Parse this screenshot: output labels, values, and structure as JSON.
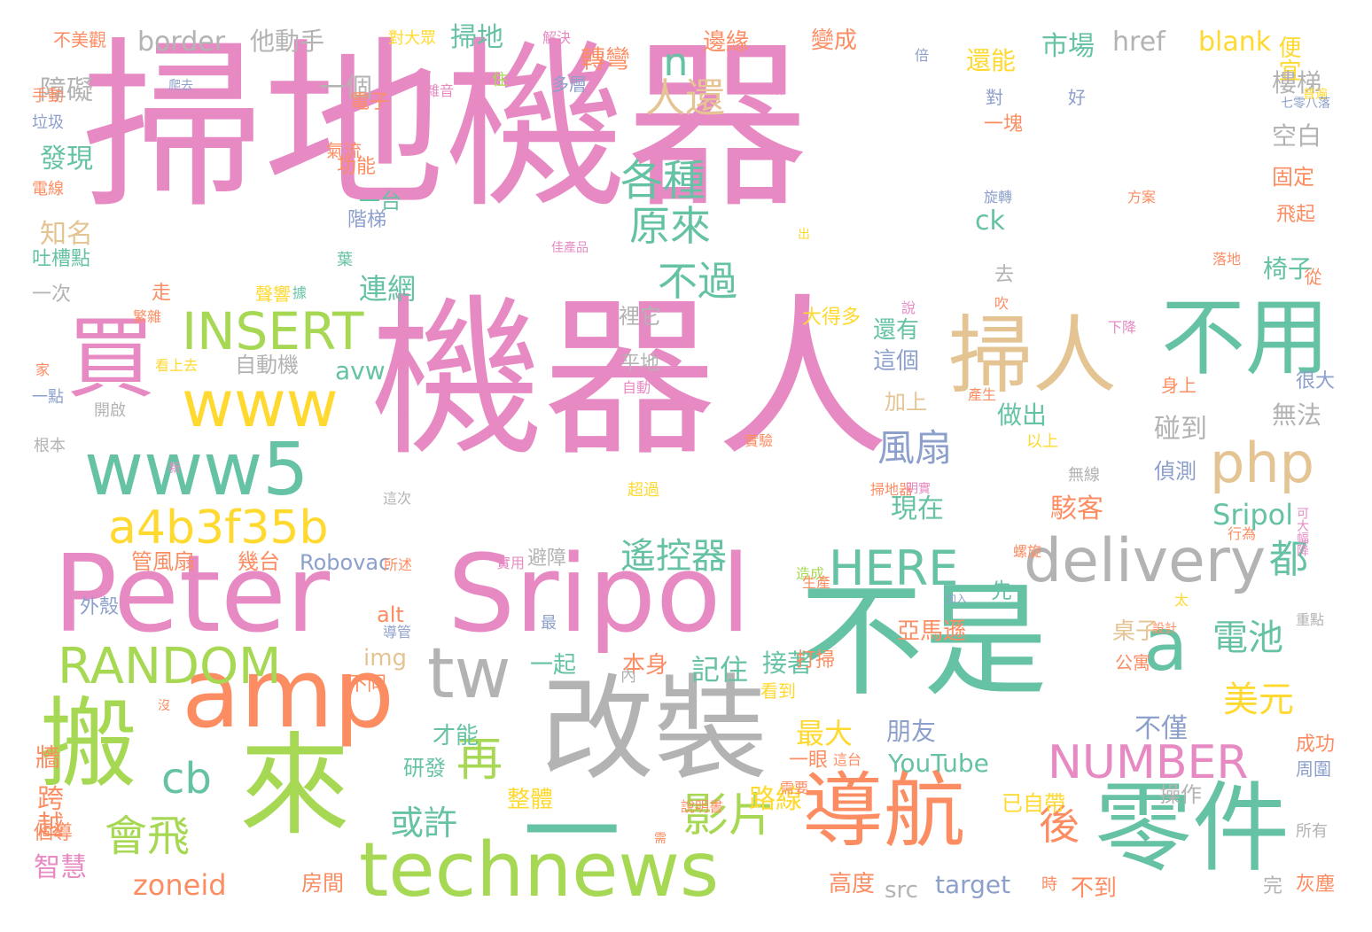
{
  "palette": {
    "pink": "#e78ac3",
    "green": "#66c2a5",
    "orange": "#fc8d62",
    "lime": "#a6d854",
    "yellow": "#ffd92f",
    "tan": "#e5c494",
    "grey": "#b3b3b3",
    "blue": "#8da0cb"
  },
  "words": [
    {
      "text": "掃地機器",
      "color": "pink"
    },
    {
      "text": "機器人",
      "color": "pink"
    },
    {
      "text": "Peter",
      "color": "pink"
    },
    {
      "text": "Sripol",
      "color": "pink"
    },
    {
      "text": "不是",
      "color": "green"
    },
    {
      "text": "amp",
      "color": "orange"
    },
    {
      "text": "改裝",
      "color": "grey"
    },
    {
      "text": "搬",
      "color": "lime"
    },
    {
      "text": "來",
      "color": "lime"
    },
    {
      "text": "一",
      "color": "green"
    },
    {
      "text": "technews",
      "color": "lime"
    },
    {
      "text": "零件",
      "color": "green"
    },
    {
      "text": "導航",
      "color": "orange"
    },
    {
      "text": "買",
      "color": "pink"
    },
    {
      "text": "www5",
      "color": "green"
    },
    {
      "text": "www",
      "color": "yellow"
    },
    {
      "text": "掃人",
      "color": "tan"
    },
    {
      "text": "不用",
      "color": "green"
    },
    {
      "text": "delivery",
      "color": "grey"
    },
    {
      "text": "tw",
      "color": "grey"
    },
    {
      "text": "a",
      "color": "green"
    },
    {
      "text": "a4b3f35b",
      "color": "yellow"
    },
    {
      "text": "INSERT",
      "color": "lime"
    },
    {
      "text": "php",
      "color": "tan"
    },
    {
      "text": "RANDOM",
      "color": "lime"
    },
    {
      "text": "NUMBER",
      "color": "pink"
    },
    {
      "text": "HERE",
      "color": "green"
    },
    {
      "text": "cb",
      "color": "green"
    },
    {
      "text": "再",
      "color": "lime"
    },
    {
      "text": "影片",
      "color": "lime"
    },
    {
      "text": "會飛",
      "color": "lime"
    },
    {
      "text": "各種",
      "color": "green"
    },
    {
      "text": "原來",
      "color": "green"
    },
    {
      "text": "不過",
      "color": "green"
    },
    {
      "text": "人還",
      "color": "tan"
    },
    {
      "text": "n",
      "color": "green"
    },
    {
      "text": "風扇",
      "color": "blue"
    },
    {
      "text": "遙控器",
      "color": "green"
    },
    {
      "text": "電池",
      "color": "green"
    },
    {
      "text": "都",
      "color": "green"
    },
    {
      "text": "美元",
      "color": "yellow"
    },
    {
      "text": "後",
      "color": "orange"
    },
    {
      "text": "或許",
      "color": "green"
    },
    {
      "text": "zoneid",
      "color": "orange"
    },
    {
      "text": "智慧",
      "color": "pink"
    },
    {
      "text": "跨越",
      "color": "orange"
    },
    {
      "text": "牆",
      "color": "orange"
    },
    {
      "text": "知名",
      "color": "tan"
    },
    {
      "text": "發現",
      "color": "green"
    },
    {
      "text": "障礙",
      "color": "grey"
    },
    {
      "text": "border",
      "color": "grey"
    },
    {
      "text": "他動手",
      "color": "grey"
    },
    {
      "text": "一個",
      "color": "grey"
    },
    {
      "text": "掃地",
      "color": "green"
    },
    {
      "text": "轉彎",
      "color": "orange"
    },
    {
      "text": "市場",
      "color": "green"
    },
    {
      "text": "href",
      "color": "grey"
    },
    {
      "text": "blank",
      "color": "yellow"
    },
    {
      "text": "便宜",
      "color": "yellow"
    },
    {
      "text": "還能",
      "color": "yellow"
    },
    {
      "text": "樓梯",
      "color": "grey"
    },
    {
      "text": "空白",
      "color": "grey"
    },
    {
      "text": "椅子",
      "color": "green"
    },
    {
      "text": "ck",
      "color": "green"
    },
    {
      "text": "Sripol",
      "color": "green"
    },
    {
      "text": "駭客",
      "color": "orange"
    },
    {
      "text": "現在",
      "color": "green"
    },
    {
      "text": "碰到",
      "color": "grey"
    },
    {
      "text": "無法",
      "color": "grey"
    },
    {
      "text": "做出",
      "color": "green"
    },
    {
      "text": "偵測",
      "color": "blue"
    },
    {
      "text": "還有",
      "color": "green"
    },
    {
      "text": "這個",
      "color": "blue"
    },
    {
      "text": "加上",
      "color": "tan"
    },
    {
      "text": "連網",
      "color": "green"
    },
    {
      "text": "一台",
      "color": "green"
    },
    {
      "text": "功能",
      "color": "orange"
    },
    {
      "text": "avw",
      "color": "green"
    },
    {
      "text": "img",
      "color": "tan"
    },
    {
      "text": "alt",
      "color": "orange"
    },
    {
      "text": "Robovac",
      "color": "blue"
    },
    {
      "text": "桌子",
      "color": "tan"
    },
    {
      "text": "亞馬遜",
      "color": "orange"
    },
    {
      "text": "記住",
      "color": "green"
    },
    {
      "text": "接著",
      "color": "green"
    },
    {
      "text": "一起",
      "color": "green"
    },
    {
      "text": "本身",
      "color": "orange"
    },
    {
      "text": "最大",
      "color": "yellow"
    },
    {
      "text": "朋友",
      "color": "blue"
    },
    {
      "text": "不僅",
      "color": "blue"
    },
    {
      "text": "YouTube",
      "color": "green"
    },
    {
      "text": "才能",
      "color": "green"
    },
    {
      "text": "研發",
      "color": "green"
    },
    {
      "text": "整體",
      "color": "yellow"
    },
    {
      "text": "路線",
      "color": "yellow"
    },
    {
      "text": "高度",
      "color": "orange"
    },
    {
      "text": "src",
      "color": "grey"
    },
    {
      "text": "target",
      "color": "blue"
    },
    {
      "text": "不到",
      "color": "orange"
    },
    {
      "text": "房間",
      "color": "orange"
    },
    {
      "text": "已自帶",
      "color": "yellow"
    },
    {
      "text": "不同",
      "color": "orange"
    },
    {
      "text": "看到",
      "color": "yellow"
    },
    {
      "text": "打掃",
      "color": "orange"
    },
    {
      "text": "公寓",
      "color": "orange"
    },
    {
      "text": "成功",
      "color": "orange"
    },
    {
      "text": "周圍",
      "color": "blue"
    },
    {
      "text": "灰塵",
      "color": "orange"
    },
    {
      "text": "所有",
      "color": "grey"
    },
    {
      "text": "完",
      "color": "grey"
    },
    {
      "text": "時",
      "color": "orange"
    },
    {
      "text": "操作",
      "color": "grey"
    },
    {
      "text": "個導",
      "color": "orange"
    },
    {
      "text": "管風扇",
      "color": "orange"
    },
    {
      "text": "幾台",
      "color": "orange"
    },
    {
      "text": "外殼",
      "color": "blue"
    },
    {
      "text": "避障",
      "color": "grey"
    },
    {
      "text": "先",
      "color": "green"
    },
    {
      "text": "自動機",
      "color": "grey"
    },
    {
      "text": "平地",
      "color": "grey"
    },
    {
      "text": "裡它",
      "color": "grey"
    },
    {
      "text": "去",
      "color": "grey"
    },
    {
      "text": "固定",
      "color": "orange"
    },
    {
      "text": "飛起",
      "color": "orange"
    },
    {
      "text": "從",
      "color": "orange"
    },
    {
      "text": "很大",
      "color": "blue"
    },
    {
      "text": "身上",
      "color": "orange"
    },
    {
      "text": "以上",
      "color": "yellow"
    },
    {
      "text": "無線",
      "color": "grey"
    },
    {
      "text": "一塊",
      "color": "orange"
    },
    {
      "text": "對",
      "color": "blue"
    },
    {
      "text": "好",
      "color": "blue"
    },
    {
      "text": "電子",
      "color": "orange"
    },
    {
      "text": "多層",
      "color": "blue"
    },
    {
      "text": "變成",
      "color": "orange"
    },
    {
      "text": "邊緣",
      "color": "orange"
    },
    {
      "text": "手動",
      "color": "orange"
    },
    {
      "text": "垃圾",
      "color": "blue"
    },
    {
      "text": "電線",
      "color": "orange"
    },
    {
      "text": "吐槽點",
      "color": "green"
    },
    {
      "text": "一次",
      "color": "grey"
    },
    {
      "text": "一點",
      "color": "blue"
    },
    {
      "text": "開啟",
      "color": "grey"
    },
    {
      "text": "根本",
      "color": "grey"
    },
    {
      "text": "不美觀",
      "color": "orange"
    },
    {
      "text": "對大眾",
      "color": "yellow"
    },
    {
      "text": "解決",
      "color": "pink"
    },
    {
      "text": "普遍",
      "color": "yellow"
    },
    {
      "text": "七零八落",
      "color": "blue"
    },
    {
      "text": "方案",
      "color": "orange"
    },
    {
      "text": "落地",
      "color": "orange"
    },
    {
      "text": "旋轉",
      "color": "blue"
    },
    {
      "text": "階梯",
      "color": "blue"
    },
    {
      "text": "氣流",
      "color": "orange"
    },
    {
      "text": "雜音",
      "color": "pink"
    },
    {
      "text": "住",
      "color": "lime"
    },
    {
      "text": "倍",
      "color": "blue"
    },
    {
      "text": "綁",
      "color": "pink"
    },
    {
      "text": "大得多",
      "color": "yellow"
    },
    {
      "text": "看上去",
      "color": "yellow"
    },
    {
      "text": "自動",
      "color": "pink"
    },
    {
      "text": "產生",
      "color": "orange"
    },
    {
      "text": "實驗",
      "color": "orange"
    },
    {
      "text": "超過",
      "color": "yellow"
    },
    {
      "text": "這次",
      "color": "grey"
    },
    {
      "text": "造成",
      "color": "lime"
    },
    {
      "text": "螺旋",
      "color": "orange"
    },
    {
      "text": "實用",
      "color": "pink"
    },
    {
      "text": "導管",
      "color": "blue"
    },
    {
      "text": "所述",
      "color": "orange"
    },
    {
      "text": "內",
      "color": "grey"
    },
    {
      "text": "一眼",
      "color": "orange"
    },
    {
      "text": "這台",
      "color": "orange"
    },
    {
      "text": "需要",
      "color": "orange"
    },
    {
      "text": "說明書",
      "color": "orange"
    },
    {
      "text": "需",
      "color": "orange"
    },
    {
      "text": "掃地器",
      "color": "orange"
    },
    {
      "text": "明實",
      "color": "pink"
    },
    {
      "text": "可大幅降",
      "color": "pink"
    },
    {
      "text": "行為",
      "color": "orange"
    },
    {
      "text": "太",
      "color": "yellow"
    },
    {
      "text": "重點",
      "color": "grey"
    },
    {
      "text": "設計",
      "color": "orange"
    },
    {
      "text": "加入",
      "color": "blue"
    },
    {
      "text": "生產",
      "color": "orange"
    },
    {
      "text": "最",
      "color": "blue"
    },
    {
      "text": "沒",
      "color": "orange"
    },
    {
      "text": "家",
      "color": "orange"
    },
    {
      "text": "據",
      "color": "green"
    },
    {
      "text": "走",
      "color": "orange"
    },
    {
      "text": "葉",
      "color": "green"
    },
    {
      "text": "聲響",
      "color": "yellow"
    },
    {
      "text": "繁雜",
      "color": "orange"
    },
    {
      "text": "佳產品",
      "color": "pink"
    },
    {
      "text": "下降",
      "color": "pink"
    },
    {
      "text": "吹",
      "color": "orange"
    },
    {
      "text": "說",
      "color": "pink"
    },
    {
      "text": "出",
      "color": "yellow"
    },
    {
      "text": "爬去",
      "color": "blue"
    },
    {
      "text": "新",
      "color": "pink"
    },
    {
      "text": "看",
      "color": "pink"
    }
  ]
}
